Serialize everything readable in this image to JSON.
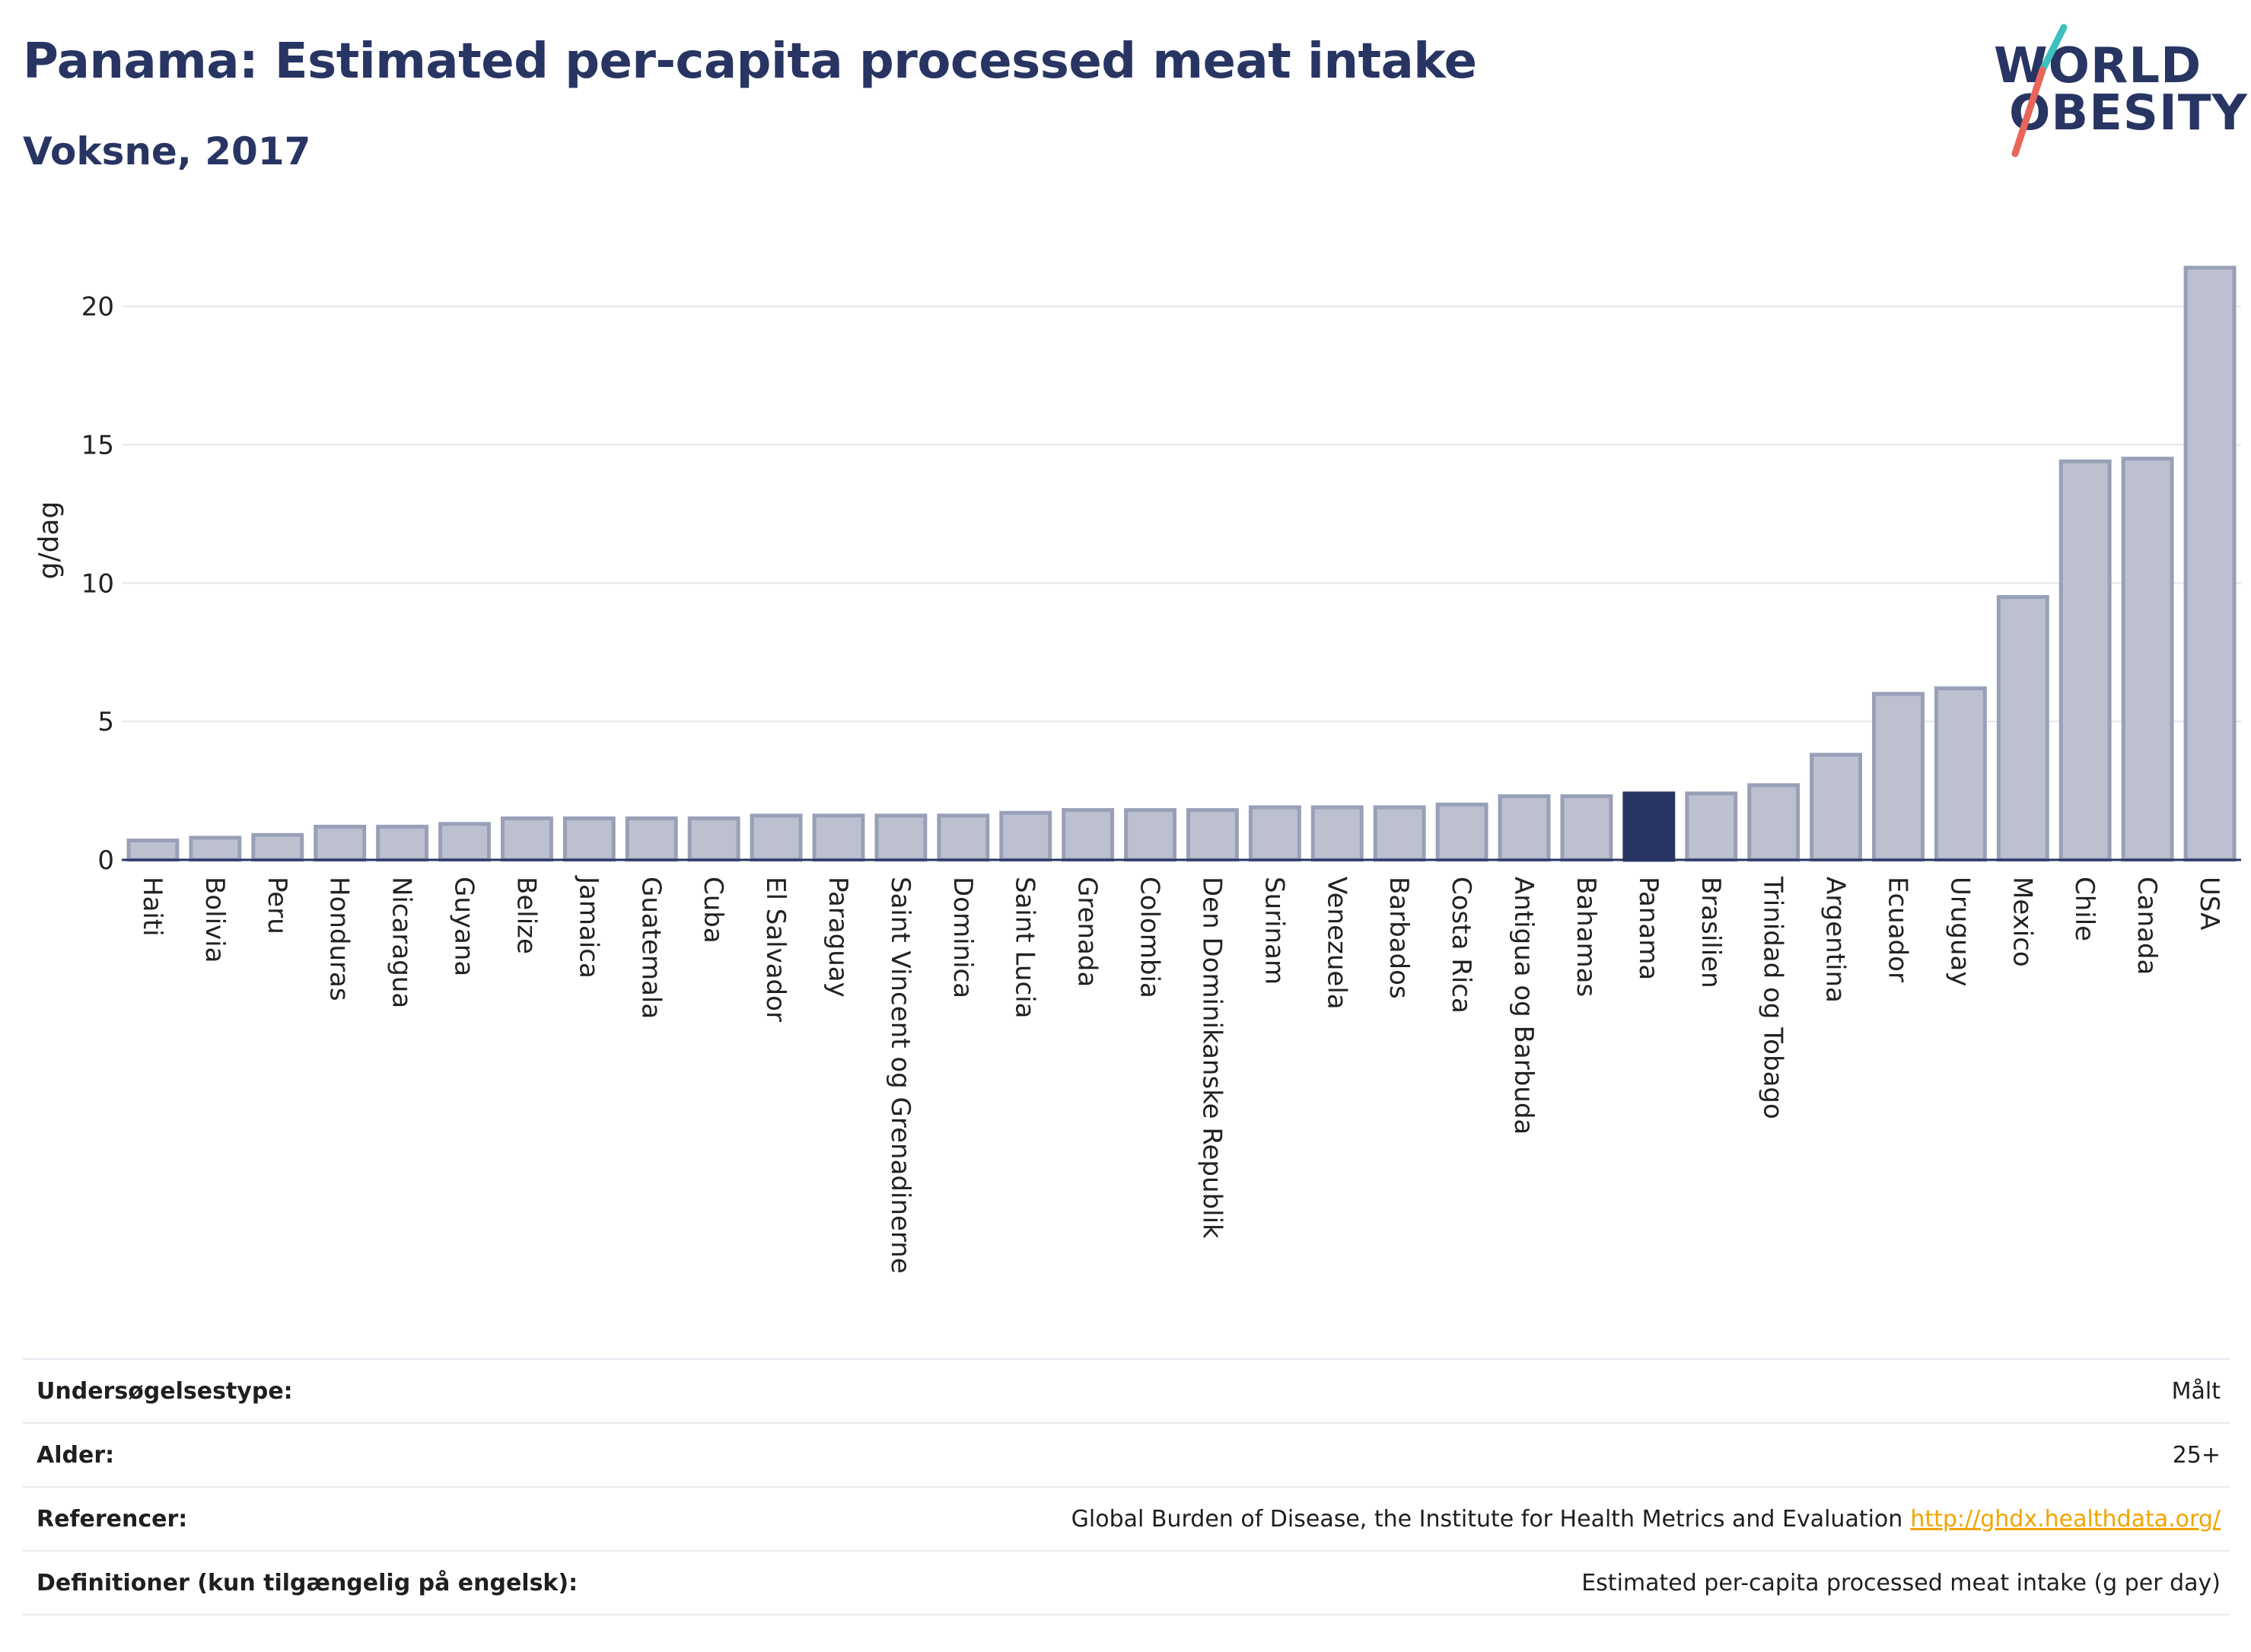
{
  "header": {
    "title": "Panama: Estimated per-capita processed meat intake",
    "subtitle": "Voksne, 2017"
  },
  "logo": {
    "line1": "WORLD",
    "line2": "OBESITY",
    "colors": {
      "text": "#283563",
      "slash_top": "#3cc0c0",
      "slash_bottom": "#e8655a"
    }
  },
  "chart_data": {
    "type": "bar",
    "ylabel": "g/dag",
    "ylim": [
      0,
      22
    ],
    "yticks": [
      0,
      5,
      10,
      15,
      20
    ],
    "grid": true,
    "highlight": "Panama",
    "colors": {
      "bar": "#bcc0cf",
      "bar_outline": "#98a0b8",
      "highlight": "#283563",
      "grid": "#e4e6ee",
      "axis": "#283563"
    },
    "categories": [
      "Haiti",
      "Bolivia",
      "Peru",
      "Honduras",
      "Nicaragua",
      "Guyana",
      "Belize",
      "Jamaica",
      "Guatemala",
      "Cuba",
      "El Salvador",
      "Paraguay",
      "Saint Vincent og Grenadinerne",
      "Dominica",
      "Saint Lucia",
      "Grenada",
      "Colombia",
      "Den Dominikanske Republik",
      "Surinam",
      "Venezuela",
      "Barbados",
      "Costa Rica",
      "Antigua og Barbuda",
      "Bahamas",
      "Panama",
      "Brasilien",
      "Trinidad og Tobago",
      "Argentina",
      "Ecuador",
      "Uruguay",
      "Mexico",
      "Chile",
      "Canada",
      "USA"
    ],
    "values": [
      0.7,
      0.8,
      0.9,
      1.2,
      1.2,
      1.3,
      1.5,
      1.5,
      1.5,
      1.5,
      1.6,
      1.6,
      1.6,
      1.6,
      1.7,
      1.8,
      1.8,
      1.8,
      1.9,
      1.9,
      1.9,
      2.0,
      2.3,
      2.3,
      2.4,
      2.4,
      2.7,
      3.8,
      6.0,
      6.2,
      9.5,
      14.4,
      14.5,
      21.4
    ]
  },
  "details": [
    {
      "key": "Undersøgelsestype:",
      "value": "Målt"
    },
    {
      "key": "Alder:",
      "value": "25+"
    },
    {
      "key": "Referencer:",
      "value": "Global Burden of Disease, the Institute for Health Metrics and Evaluation",
      "link": "http://ghdx.healthdata.org/"
    },
    {
      "key": "Definitioner (kun tilgængelig på engelsk):",
      "value": "Estimated per-capita processed meat intake (g per day)"
    }
  ]
}
